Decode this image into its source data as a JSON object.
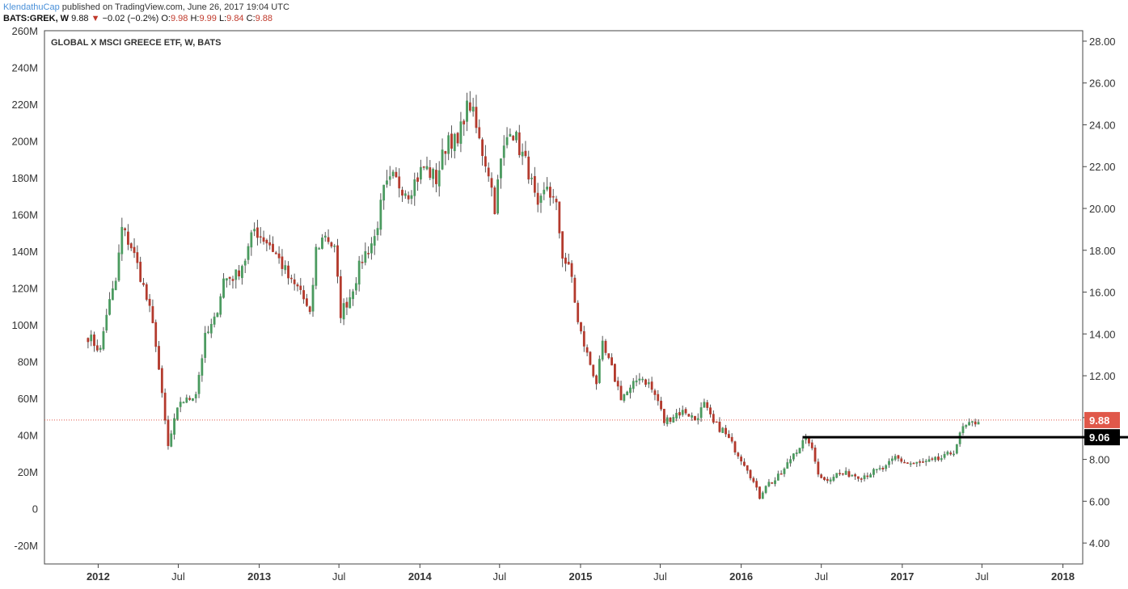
{
  "header": {
    "author": "KlendathuCap",
    "published": "published on TradingView.com, June 26, 2017 19:04 UTC",
    "symbol": "BATS:GREK, W",
    "last": "9.88",
    "down_arrow": "▼",
    "change": "−0.02 (−0.2%)",
    "o_label": "O:",
    "o_val": "9.98",
    "h_label": "H:",
    "h_val": "9.99",
    "l_label": "L:",
    "l_val": "9.84",
    "c_label": "C:",
    "c_val": "9.88"
  },
  "colors": {
    "up": "#4a9a5f",
    "down": "#b3392c",
    "price_tag": "#e0584a",
    "level_line": "#000000",
    "axis": "#444444",
    "last_line": "#e0584a"
  },
  "chart_data": {
    "type": "candlestick",
    "title": "GLOBAL X MSCI GREECE ETF, W, BATS",
    "x_range": [
      "2011-09-01",
      "2018-02-15"
    ],
    "x_ticks": [
      {
        "label": "2012",
        "date": "2012-01-01",
        "bold": true
      },
      {
        "label": "Jul",
        "date": "2012-07-01",
        "bold": false
      },
      {
        "label": "2013",
        "date": "2013-01-01",
        "bold": true
      },
      {
        "label": "Jul",
        "date": "2013-07-01",
        "bold": false
      },
      {
        "label": "2014",
        "date": "2014-01-01",
        "bold": true
      },
      {
        "label": "Jul",
        "date": "2014-07-01",
        "bold": false
      },
      {
        "label": "2015",
        "date": "2015-01-01",
        "bold": true
      },
      {
        "label": "Jul",
        "date": "2015-07-01",
        "bold": false
      },
      {
        "label": "2016",
        "date": "2016-01-01",
        "bold": true
      },
      {
        "label": "Jul",
        "date": "2016-07-01",
        "bold": false
      },
      {
        "label": "2017",
        "date": "2017-01-01",
        "bold": true
      },
      {
        "label": "Jul",
        "date": "2017-07-01",
        "bold": false
      },
      {
        "label": "2018",
        "date": "2018-01-01",
        "bold": true
      }
    ],
    "price_axis": {
      "side": "right",
      "range": [
        3.0,
        28.5
      ],
      "ticks": [
        "28.00",
        "26.00",
        "24.00",
        "22.00",
        "20.00",
        "18.00",
        "16.00",
        "14.00",
        "12.00",
        "10.00",
        "8.00",
        "6.00",
        "4.00"
      ]
    },
    "volume_axis": {
      "side": "left",
      "range": [
        -30,
        260
      ],
      "ticks": [
        "260M",
        "240M",
        "220M",
        "200M",
        "180M",
        "160M",
        "140M",
        "120M",
        "100M",
        "80M",
        "60M",
        "40M",
        "20M",
        "0",
        "-20M"
      ]
    },
    "last_price": {
      "label": "9.88",
      "value": 9.88
    },
    "level": {
      "label": "9.06",
      "value": 9.06,
      "start": "2016-05-20"
    },
    "anchors": [
      [
        "2011-12-09",
        13.9
      ],
      [
        "2012-01-06",
        13.2
      ],
      [
        "2012-01-20",
        15.0
      ],
      [
        "2012-02-10",
        16.5
      ],
      [
        "2012-02-24",
        19.0
      ],
      [
        "2012-03-16",
        18.2
      ],
      [
        "2012-04-06",
        16.8
      ],
      [
        "2012-04-27",
        15.1
      ],
      [
        "2012-05-11",
        13.6
      ],
      [
        "2012-05-25",
        11.0
      ],
      [
        "2012-06-08",
        8.6
      ],
      [
        "2012-06-22",
        9.8
      ],
      [
        "2012-07-06",
        10.8
      ],
      [
        "2012-07-20",
        10.8
      ],
      [
        "2012-08-10",
        11.2
      ],
      [
        "2012-08-31",
        13.8
      ],
      [
        "2012-09-21",
        14.6
      ],
      [
        "2012-10-12",
        16.6
      ],
      [
        "2012-11-09",
        16.8
      ],
      [
        "2012-11-30",
        17.6
      ],
      [
        "2012-12-21",
        19.0
      ],
      [
        "2013-01-25",
        18.3
      ],
      [
        "2013-02-22",
        17.3
      ],
      [
        "2013-03-15",
        16.4
      ],
      [
        "2013-04-05",
        16.1
      ],
      [
        "2013-04-26",
        14.8
      ],
      [
        "2013-05-10",
        18.0
      ],
      [
        "2013-05-31",
        18.8
      ],
      [
        "2013-06-21",
        18.0
      ],
      [
        "2013-07-05",
        15.0
      ],
      [
        "2013-07-26",
        15.8
      ],
      [
        "2013-08-23",
        17.6
      ],
      [
        "2013-09-20",
        18.6
      ],
      [
        "2013-10-11",
        20.8
      ],
      [
        "2013-11-01",
        21.4
      ],
      [
        "2013-12-06",
        20.8
      ],
      [
        "2014-01-10",
        22.0
      ],
      [
        "2014-02-07",
        21.4
      ],
      [
        "2014-03-07",
        23.5
      ],
      [
        "2014-03-28",
        23.0
      ],
      [
        "2014-04-11",
        24.5
      ],
      [
        "2014-04-25",
        25.0
      ],
      [
        "2014-05-16",
        23.2
      ],
      [
        "2014-06-06",
        21.8
      ],
      [
        "2014-06-20",
        20.1
      ],
      [
        "2014-07-04",
        22.2
      ],
      [
        "2014-07-25",
        24.0
      ],
      [
        "2014-08-15",
        22.9
      ],
      [
        "2014-09-05",
        21.8
      ],
      [
        "2014-09-26",
        19.8
      ],
      [
        "2014-10-17",
        21.1
      ],
      [
        "2014-11-07",
        20.0
      ],
      [
        "2014-11-21",
        17.8
      ],
      [
        "2014-12-12",
        16.7
      ],
      [
        "2014-12-26",
        14.5
      ],
      [
        "2015-01-16",
        13.0
      ],
      [
        "2015-02-06",
        11.7
      ],
      [
        "2015-02-20",
        13.4
      ],
      [
        "2015-03-13",
        12.3
      ],
      [
        "2015-04-03",
        11.0
      ],
      [
        "2015-04-24",
        11.3
      ],
      [
        "2015-05-15",
        12.0
      ],
      [
        "2015-06-05",
        11.6
      ],
      [
        "2015-06-26",
        10.8
      ],
      [
        "2015-07-10",
        9.8
      ],
      [
        "2015-08-07",
        10.2
      ],
      [
        "2015-08-28",
        10.3
      ],
      [
        "2015-09-18",
        9.9
      ],
      [
        "2015-10-09",
        10.6
      ],
      [
        "2015-10-30",
        9.7
      ],
      [
        "2015-11-20",
        9.4
      ],
      [
        "2015-12-18",
        8.5
      ],
      [
        "2016-01-15",
        7.6
      ],
      [
        "2016-02-12",
        6.2
      ],
      [
        "2016-02-26",
        6.8
      ],
      [
        "2016-03-18",
        7.0
      ],
      [
        "2016-04-08",
        7.5
      ],
      [
        "2016-04-29",
        8.3
      ],
      [
        "2016-05-20",
        8.8
      ],
      [
        "2016-06-03",
        8.9
      ],
      [
        "2016-06-24",
        7.4
      ],
      [
        "2016-07-08",
        7.0
      ],
      [
        "2016-08-05",
        7.3
      ],
      [
        "2016-09-02",
        7.3
      ],
      [
        "2016-09-30",
        7.2
      ],
      [
        "2016-10-28",
        7.4
      ],
      [
        "2016-11-25",
        7.6
      ],
      [
        "2016-12-16",
        8.1
      ],
      [
        "2017-01-13",
        7.8
      ],
      [
        "2017-02-10",
        7.8
      ],
      [
        "2017-03-10",
        7.9
      ],
      [
        "2017-04-07",
        8.1
      ],
      [
        "2017-04-28",
        8.4
      ],
      [
        "2017-05-19",
        9.5
      ],
      [
        "2017-06-02",
        9.6
      ],
      [
        "2017-06-16",
        9.8
      ],
      [
        "2017-06-23",
        9.88
      ]
    ]
  }
}
